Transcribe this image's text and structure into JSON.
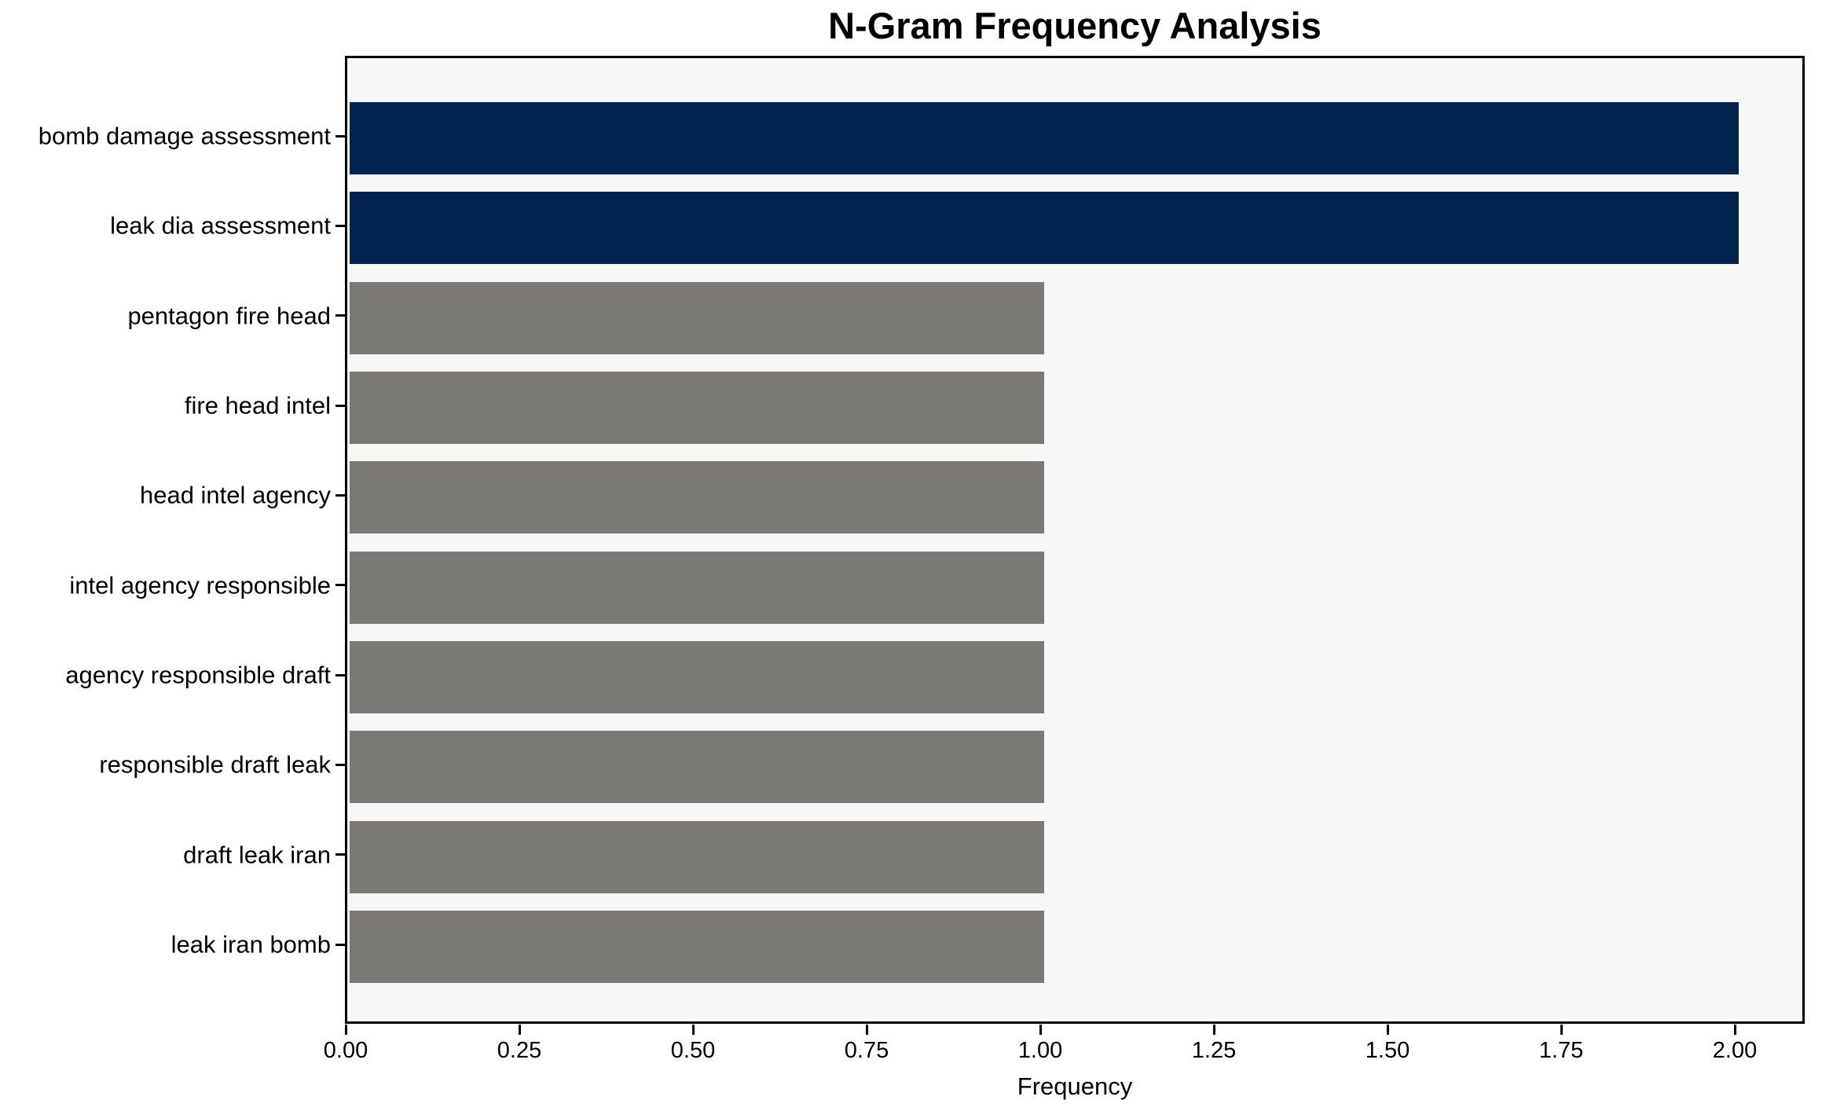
{
  "chart_data": {
    "type": "bar",
    "orientation": "horizontal",
    "title": "N-Gram Frequency Analysis",
    "xlabel": "Frequency",
    "ylabel": "",
    "categories": [
      "bomb damage assessment",
      "leak dia assessment",
      "pentagon fire head",
      "fire head intel",
      "head intel agency",
      "intel agency responsible",
      "agency responsible draft",
      "responsible draft leak",
      "draft leak iran",
      "leak iran bomb"
    ],
    "values": [
      2,
      2,
      1,
      1,
      1,
      1,
      1,
      1,
      1,
      1
    ],
    "bar_colors": [
      "#02234E",
      "#02234E",
      "#7B7974",
      "#7B7974",
      "#7B7974",
      "#7B7974",
      "#7B7974",
      "#7B7974",
      "#7B7974",
      "#7B7974"
    ],
    "x_ticks": [
      0,
      0.25,
      0.5,
      0.75,
      1.0,
      1.25,
      1.5,
      1.75,
      2.0
    ],
    "x_tick_labels": [
      "0.00",
      "0.25",
      "0.50",
      "0.75",
      "1.00",
      "1.25",
      "1.50",
      "1.75",
      "2.00"
    ],
    "xlim": [
      0,
      2.098
    ],
    "grid": false,
    "legend": null,
    "colors": {
      "highlight": "#02234E",
      "default": "#7B7974",
      "plot_background": "#F7F7F7",
      "figure_background": "#FFFFFF",
      "spine": "#000000",
      "text": "#000000"
    }
  }
}
